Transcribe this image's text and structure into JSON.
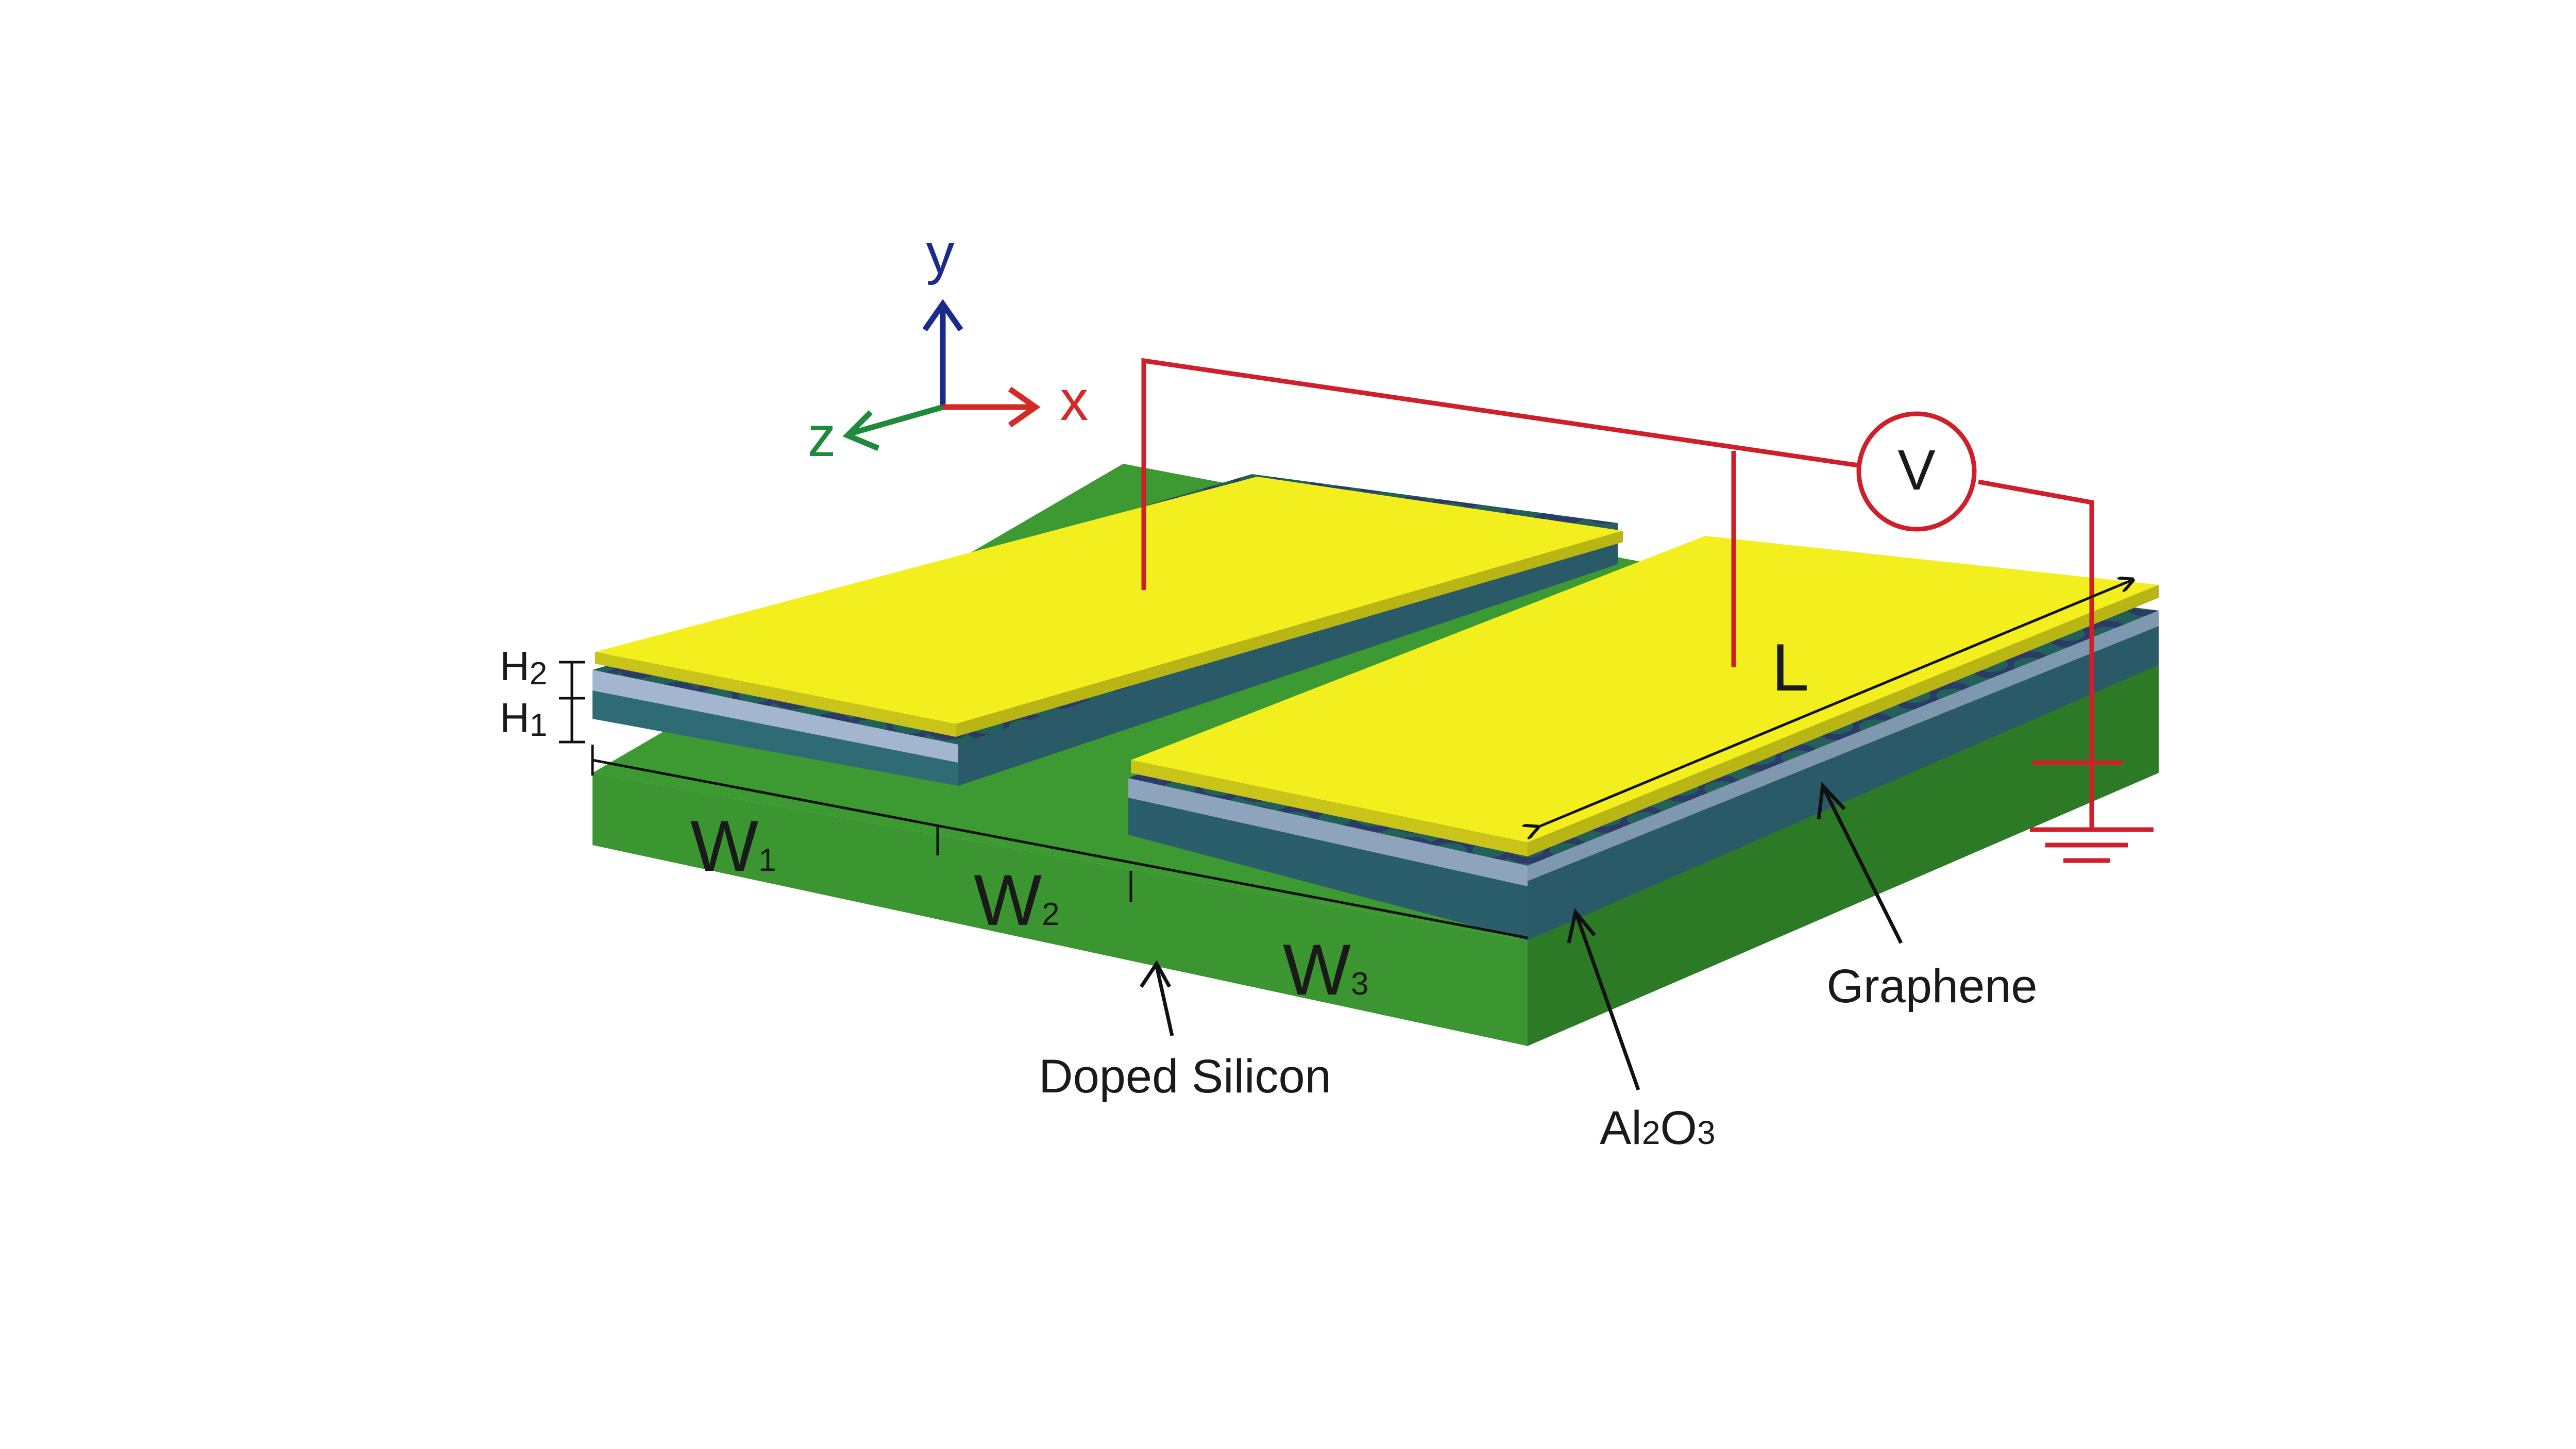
{
  "axes": {
    "y_label": "y",
    "x_label": "x",
    "z_label": "z",
    "y_color": "#1c2a8c",
    "x_color": "#d42a26",
    "z_color": "#1f8a3c"
  },
  "voltmeter": {
    "label": "V",
    "wire_color": "#cf1f2a"
  },
  "dimensions": {
    "h2": {
      "letter": "H",
      "sub": "2"
    },
    "h1": {
      "letter": "H",
      "sub": "1"
    },
    "w1": {
      "letter": "W",
      "sub": "1"
    },
    "w2": {
      "letter": "W",
      "sub": "2"
    },
    "w3": {
      "letter": "W",
      "sub": "3"
    },
    "length": "L"
  },
  "labels": {
    "doped_silicon": "Doped Silicon",
    "graphene": "Graphene",
    "al2o3": {
      "a": "Al",
      "s1": "2",
      "b": "O",
      "s2": "3"
    }
  },
  "colors": {
    "electrode": "#f3ef1f",
    "substrate": "#3d9a32",
    "substrate_dark": "#2c7a25",
    "oxide": "#23605a",
    "graphene": "#2c3a68"
  }
}
